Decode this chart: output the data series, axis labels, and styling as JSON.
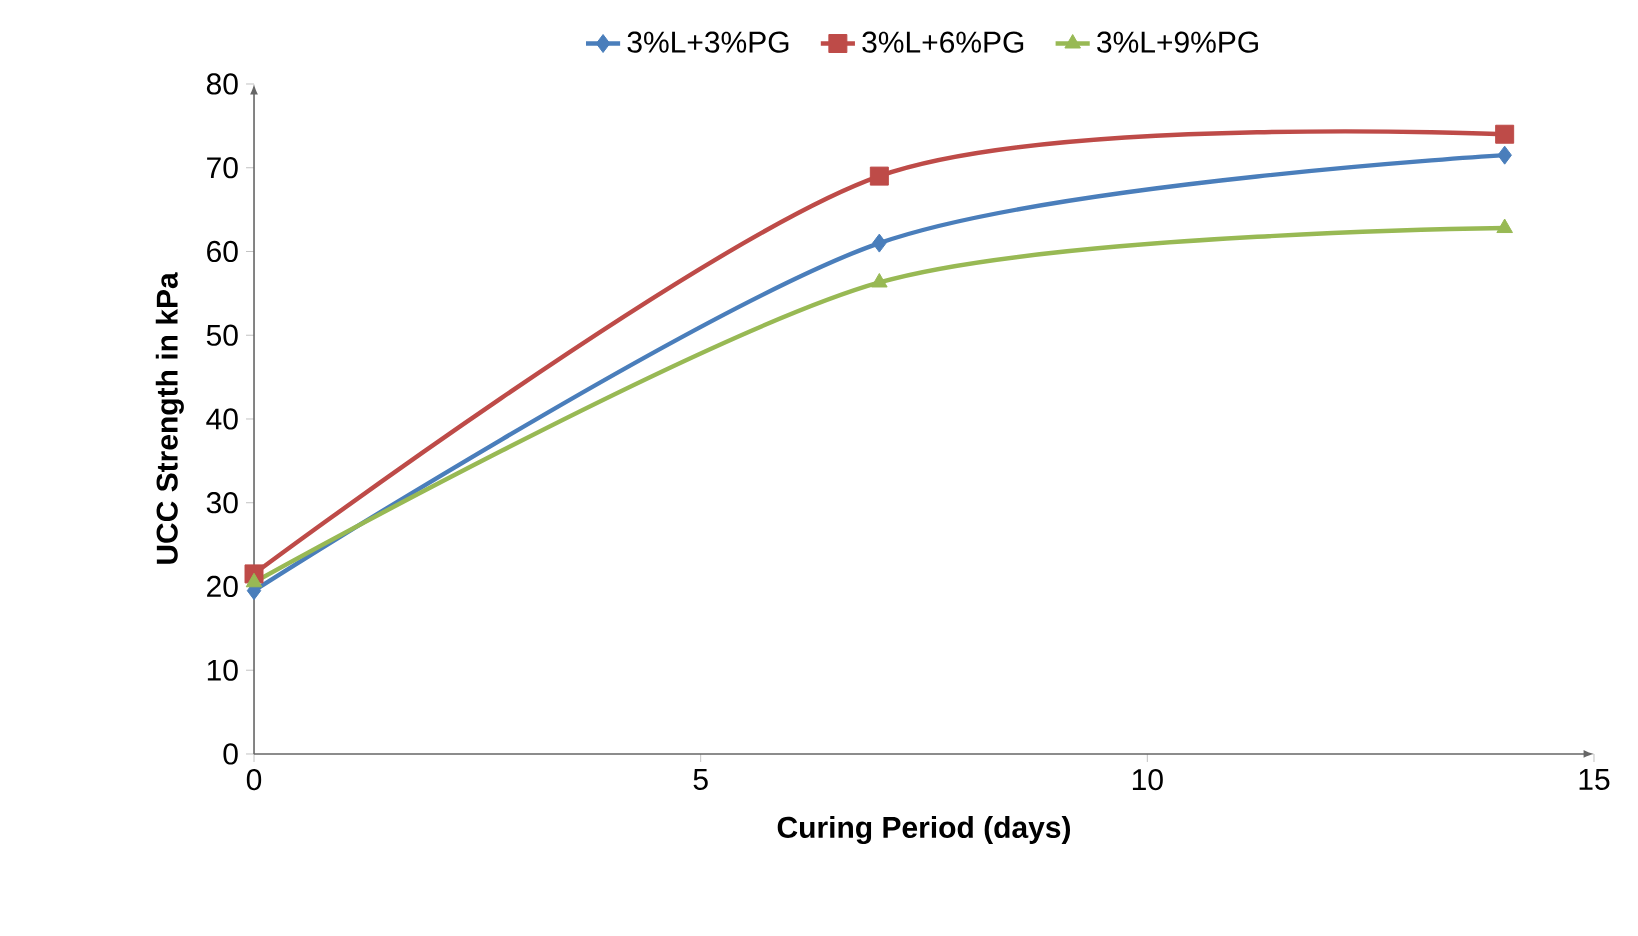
{
  "chart_data": {
    "type": "line",
    "xlabel": "Curing Period (days)",
    "ylabel": "UCC Strength in kPa",
    "x": [
      0,
      7,
      14
    ],
    "series": [
      {
        "name": "3%L+3%PG",
        "color": "#4a7ebb",
        "marker": "diamond",
        "values": [
          19.5,
          61,
          71.5
        ]
      },
      {
        "name": "3%L+6%PG",
        "color": "#be4b48",
        "marker": "square",
        "values": [
          21.5,
          69,
          74
        ]
      },
      {
        "name": "3%L+9%PG",
        "color": "#98b954",
        "marker": "triangle",
        "values": [
          20.5,
          56.3,
          62.8
        ]
      }
    ],
    "xlim": [
      0,
      15
    ],
    "ylim": [
      0,
      80
    ],
    "xticks": [
      0,
      5,
      10,
      15
    ],
    "yticks": [
      0,
      10,
      20,
      30,
      40,
      50,
      60,
      70,
      80
    ],
    "legend": "top",
    "line_style": "solid"
  }
}
